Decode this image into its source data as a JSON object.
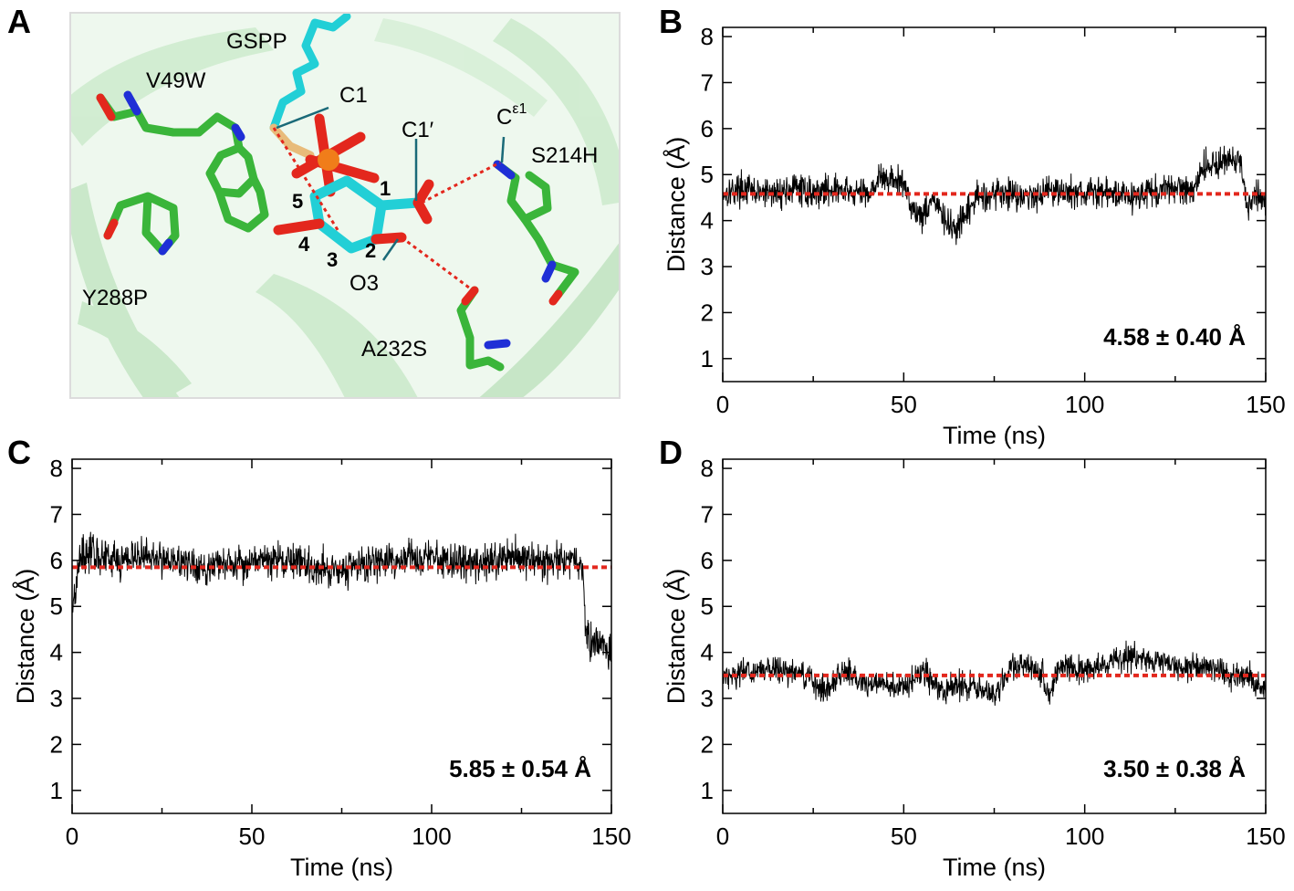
{
  "panel_letters": {
    "a": "A",
    "b": "B",
    "c": "C",
    "d": "D"
  },
  "structure": {
    "labels": {
      "gspp": "GSPP",
      "c1": "C1",
      "v49w": "V49W",
      "c1prime": "C1′",
      "ce1_base": "C",
      "ce1_sup": "ε1",
      "s214h": "S214H",
      "y288p": "Y288P",
      "o3": "O3",
      "a232s": "A232S"
    },
    "ring_numbers": {
      "n1": "1",
      "n2": "2",
      "n3": "3",
      "n4": "4",
      "n5": "5"
    },
    "colors": {
      "protein": "#3ab53a",
      "ligand_carbon": "#22cfd6",
      "oxygen": "#e3271d",
      "nitrogen": "#1f2fd6",
      "phosphorus": "#f07d1a",
      "sulfur": "#e8bb7a",
      "cartoon": "#cdebcd",
      "contact": "#e3271d"
    }
  },
  "chart_data": [
    {
      "panel": "B",
      "type": "line",
      "xlabel": "Time (ns)",
      "ylabel": "Distance (Å)",
      "xlim": [
        0,
        150
      ],
      "ylim": [
        0.5,
        8.2
      ],
      "xticks": [
        0,
        50,
        100,
        150
      ],
      "yticks": [
        1,
        2,
        3,
        4,
        5,
        6,
        7,
        8
      ],
      "mean": 4.58,
      "annotation": "4.58 ± 0.40 Å",
      "series": [
        {
          "color": "#000000",
          "x": [
            0,
            5,
            10,
            15,
            20,
            25,
            30,
            35,
            40,
            43,
            46,
            50,
            53,
            55,
            58,
            62,
            65,
            68,
            70,
            75,
            80,
            85,
            90,
            95,
            100,
            105,
            110,
            115,
            118,
            120,
            125,
            130,
            133,
            135,
            138,
            140,
            143,
            145,
            147,
            150
          ],
          "y": [
            4.6,
            4.7,
            4.6,
            4.6,
            4.7,
            4.6,
            4.7,
            4.6,
            4.6,
            4.9,
            4.9,
            4.8,
            4.2,
            4.1,
            4.5,
            3.9,
            3.8,
            4.2,
            4.5,
            4.6,
            4.6,
            4.5,
            4.7,
            4.6,
            4.6,
            4.6,
            4.6,
            4.5,
            4.7,
            4.6,
            4.7,
            4.7,
            5.2,
            5.2,
            5.3,
            5.3,
            5.2,
            4.3,
            4.6,
            4.4
          ],
          "noise": 0.4
        }
      ]
    },
    {
      "panel": "C",
      "type": "line",
      "xlabel": "Time (ns)",
      "ylabel": "Distance (Å)",
      "xlim": [
        0,
        150
      ],
      "ylim": [
        0.5,
        8.2
      ],
      "xticks": [
        0,
        50,
        100,
        150
      ],
      "yticks": [
        1,
        2,
        3,
        4,
        5,
        6,
        7,
        8
      ],
      "mean": 5.85,
      "annotation": "5.85 ± 0.54 Å",
      "series": [
        {
          "color": "#000000",
          "x": [
            0,
            1,
            2,
            5,
            10,
            20,
            30,
            35,
            40,
            50,
            60,
            70,
            80,
            90,
            100,
            110,
            115,
            120,
            130,
            140,
            142,
            143,
            145,
            148,
            150
          ],
          "y": [
            5.0,
            5.4,
            6.1,
            6.2,
            6.0,
            6.1,
            6.0,
            5.8,
            5.9,
            6.0,
            6.0,
            5.8,
            5.9,
            6.0,
            6.1,
            5.9,
            6.0,
            6.1,
            6.0,
            6.0,
            5.9,
            4.3,
            4.2,
            4.1,
            4.0
          ],
          "noise": 0.48
        }
      ]
    },
    {
      "panel": "D",
      "type": "line",
      "xlabel": "Time (ns)",
      "ylabel": "Distance (Å)",
      "xlim": [
        0,
        150
      ],
      "ylim": [
        0.5,
        8.2
      ],
      "xticks": [
        0,
        50,
        100,
        150
      ],
      "yticks": [
        1,
        2,
        3,
        4,
        5,
        6,
        7,
        8
      ],
      "mean": 3.5,
      "annotation": "3.50 ± 0.38 Å",
      "series": [
        {
          "color": "#000000",
          "x": [
            0,
            10,
            20,
            28,
            32,
            35,
            40,
            45,
            50,
            55,
            60,
            65,
            70,
            75,
            80,
            85,
            88,
            90,
            92,
            95,
            100,
            105,
            110,
            115,
            120,
            125,
            130,
            135,
            140,
            145,
            150
          ],
          "y": [
            3.5,
            3.6,
            3.6,
            3.2,
            3.5,
            3.6,
            3.3,
            3.3,
            3.2,
            3.6,
            3.2,
            3.3,
            3.2,
            3.1,
            3.7,
            3.7,
            3.6,
            3.0,
            3.6,
            3.7,
            3.6,
            3.7,
            3.9,
            3.9,
            3.8,
            3.7,
            3.7,
            3.7,
            3.5,
            3.5,
            3.2
          ],
          "noise": 0.35
        }
      ]
    }
  ]
}
